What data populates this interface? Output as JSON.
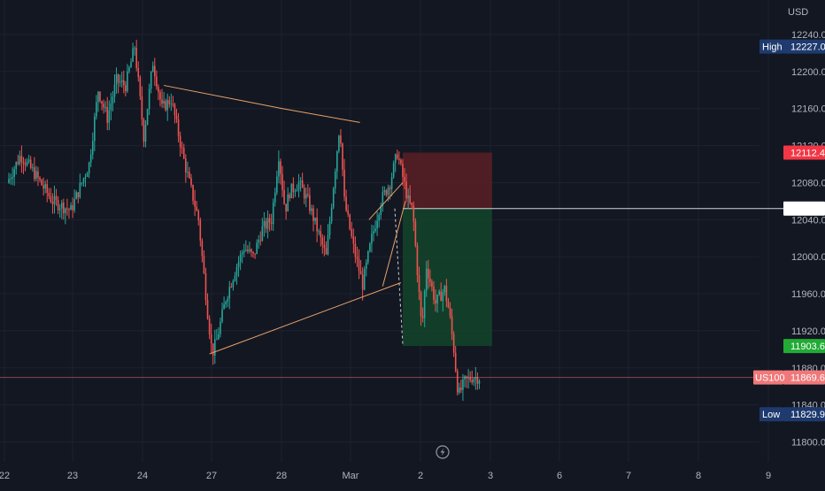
{
  "colors": {
    "background": "#131722",
    "grid": "#1e2230",
    "up": "#26a69a",
    "down": "#ef5350",
    "axis_text": "#b2b5be",
    "pattern": "#e8a26a",
    "stop_zone": "#5a1f25",
    "target_zone": "#13422a",
    "badge_blue": "#1e3a6e",
    "badge_red": "#f23645",
    "badge_green": "#22ab35",
    "badge_price": "#f0787a"
  },
  "icons": [
    "lightning-icon"
  ],
  "chart_data": {
    "type": "candlestick",
    "symbol": "US100",
    "currency": "USD",
    "y_ticks": [
      12240.0,
      12200.0,
      12160.0,
      12120.0,
      12080.0,
      12040.0,
      12000.0,
      11960.0,
      11920.0,
      11880.0,
      11840.0,
      11800.0
    ],
    "y_tick_labels": [
      "12240.0",
      "12200.0",
      "12160.0",
      "12120.0",
      "12080.0",
      "12040.0",
      "12000.0",
      "11960.0",
      "11920.0",
      "11880.0",
      "11840.0",
      "11800.0"
    ],
    "x_labels": [
      "22",
      "23",
      "24",
      "27",
      "28",
      "Mar",
      "2",
      "3",
      "6",
      "7",
      "8",
      "9"
    ],
    "ylim": [
      11782,
      12262
    ],
    "high": {
      "label": "High",
      "value": "12227.0"
    },
    "low": {
      "label": "Low",
      "value": "11829.9"
    },
    "current": {
      "label": "US100",
      "value": "11869.6"
    },
    "stop_loss": "12112.4",
    "entry": "12052.0",
    "take_profit": "11903.6",
    "price_path": [
      [
        0,
        12080
      ],
      [
        1.5,
        12110
      ],
      [
        3,
        12090
      ],
      [
        5,
        12060
      ],
      [
        7,
        12050
      ],
      [
        9,
        12100
      ],
      [
        10,
        12180
      ],
      [
        11,
        12150
      ],
      [
        12,
        12190
      ],
      [
        13,
        12185
      ],
      [
        14,
        12227
      ],
      [
        15,
        12130
      ],
      [
        16,
        12210
      ],
      [
        17,
        12160
      ],
      [
        18,
        12170
      ],
      [
        19.5,
        12100
      ],
      [
        20,
        12080
      ],
      [
        21,
        12040
      ],
      [
        22,
        11940
      ],
      [
        22.5,
        11895
      ],
      [
        23,
        11910
      ],
      [
        24,
        11955
      ],
      [
        25,
        11985
      ],
      [
        26,
        12010
      ],
      [
        27,
        12000
      ],
      [
        28,
        12030
      ],
      [
        29,
        12040
      ],
      [
        29.8,
        12110
      ],
      [
        30.5,
        12050
      ],
      [
        31,
        12070
      ],
      [
        32,
        12080
      ],
      [
        33,
        12060
      ],
      [
        34,
        12030
      ],
      [
        35,
        12000
      ],
      [
        36.5,
        12145
      ],
      [
        37,
        12060
      ],
      [
        38,
        12010
      ],
      [
        39,
        11970
      ],
      [
        40,
        12020
      ],
      [
        41,
        12060
      ],
      [
        42,
        12080
      ],
      [
        42.8,
        12112
      ],
      [
        44,
        12060
      ],
      [
        44.5,
        12050
      ],
      [
        45.5,
        11920
      ],
      [
        46,
        11990
      ],
      [
        47,
        11950
      ],
      [
        48,
        11965
      ],
      [
        48.5,
        11940
      ],
      [
        49,
        11900
      ],
      [
        49.5,
        11850
      ],
      [
        50.2,
        11865
      ],
      [
        51,
        11870
      ],
      [
        51.8,
        11869.6
      ]
    ],
    "pattern_lines": [
      [
        [
          17,
          12185
        ],
        [
          30,
          12160
        ],
        [
          38.5,
          12145
        ]
      ],
      [
        [
          22,
          11895
        ],
        [
          43,
          11972
        ]
      ],
      [
        [
          39.5,
          12040
        ],
        [
          43.2,
          12080
        ]
      ],
      [
        [
          41,
          11968
        ],
        [
          43.5,
          12060
        ]
      ]
    ],
    "position": {
      "type": "short",
      "x_start": 43.2,
      "x_end": 53,
      "entry": 12052.0,
      "stop": 12112.4,
      "target": 11903.6
    },
    "grid": true
  }
}
